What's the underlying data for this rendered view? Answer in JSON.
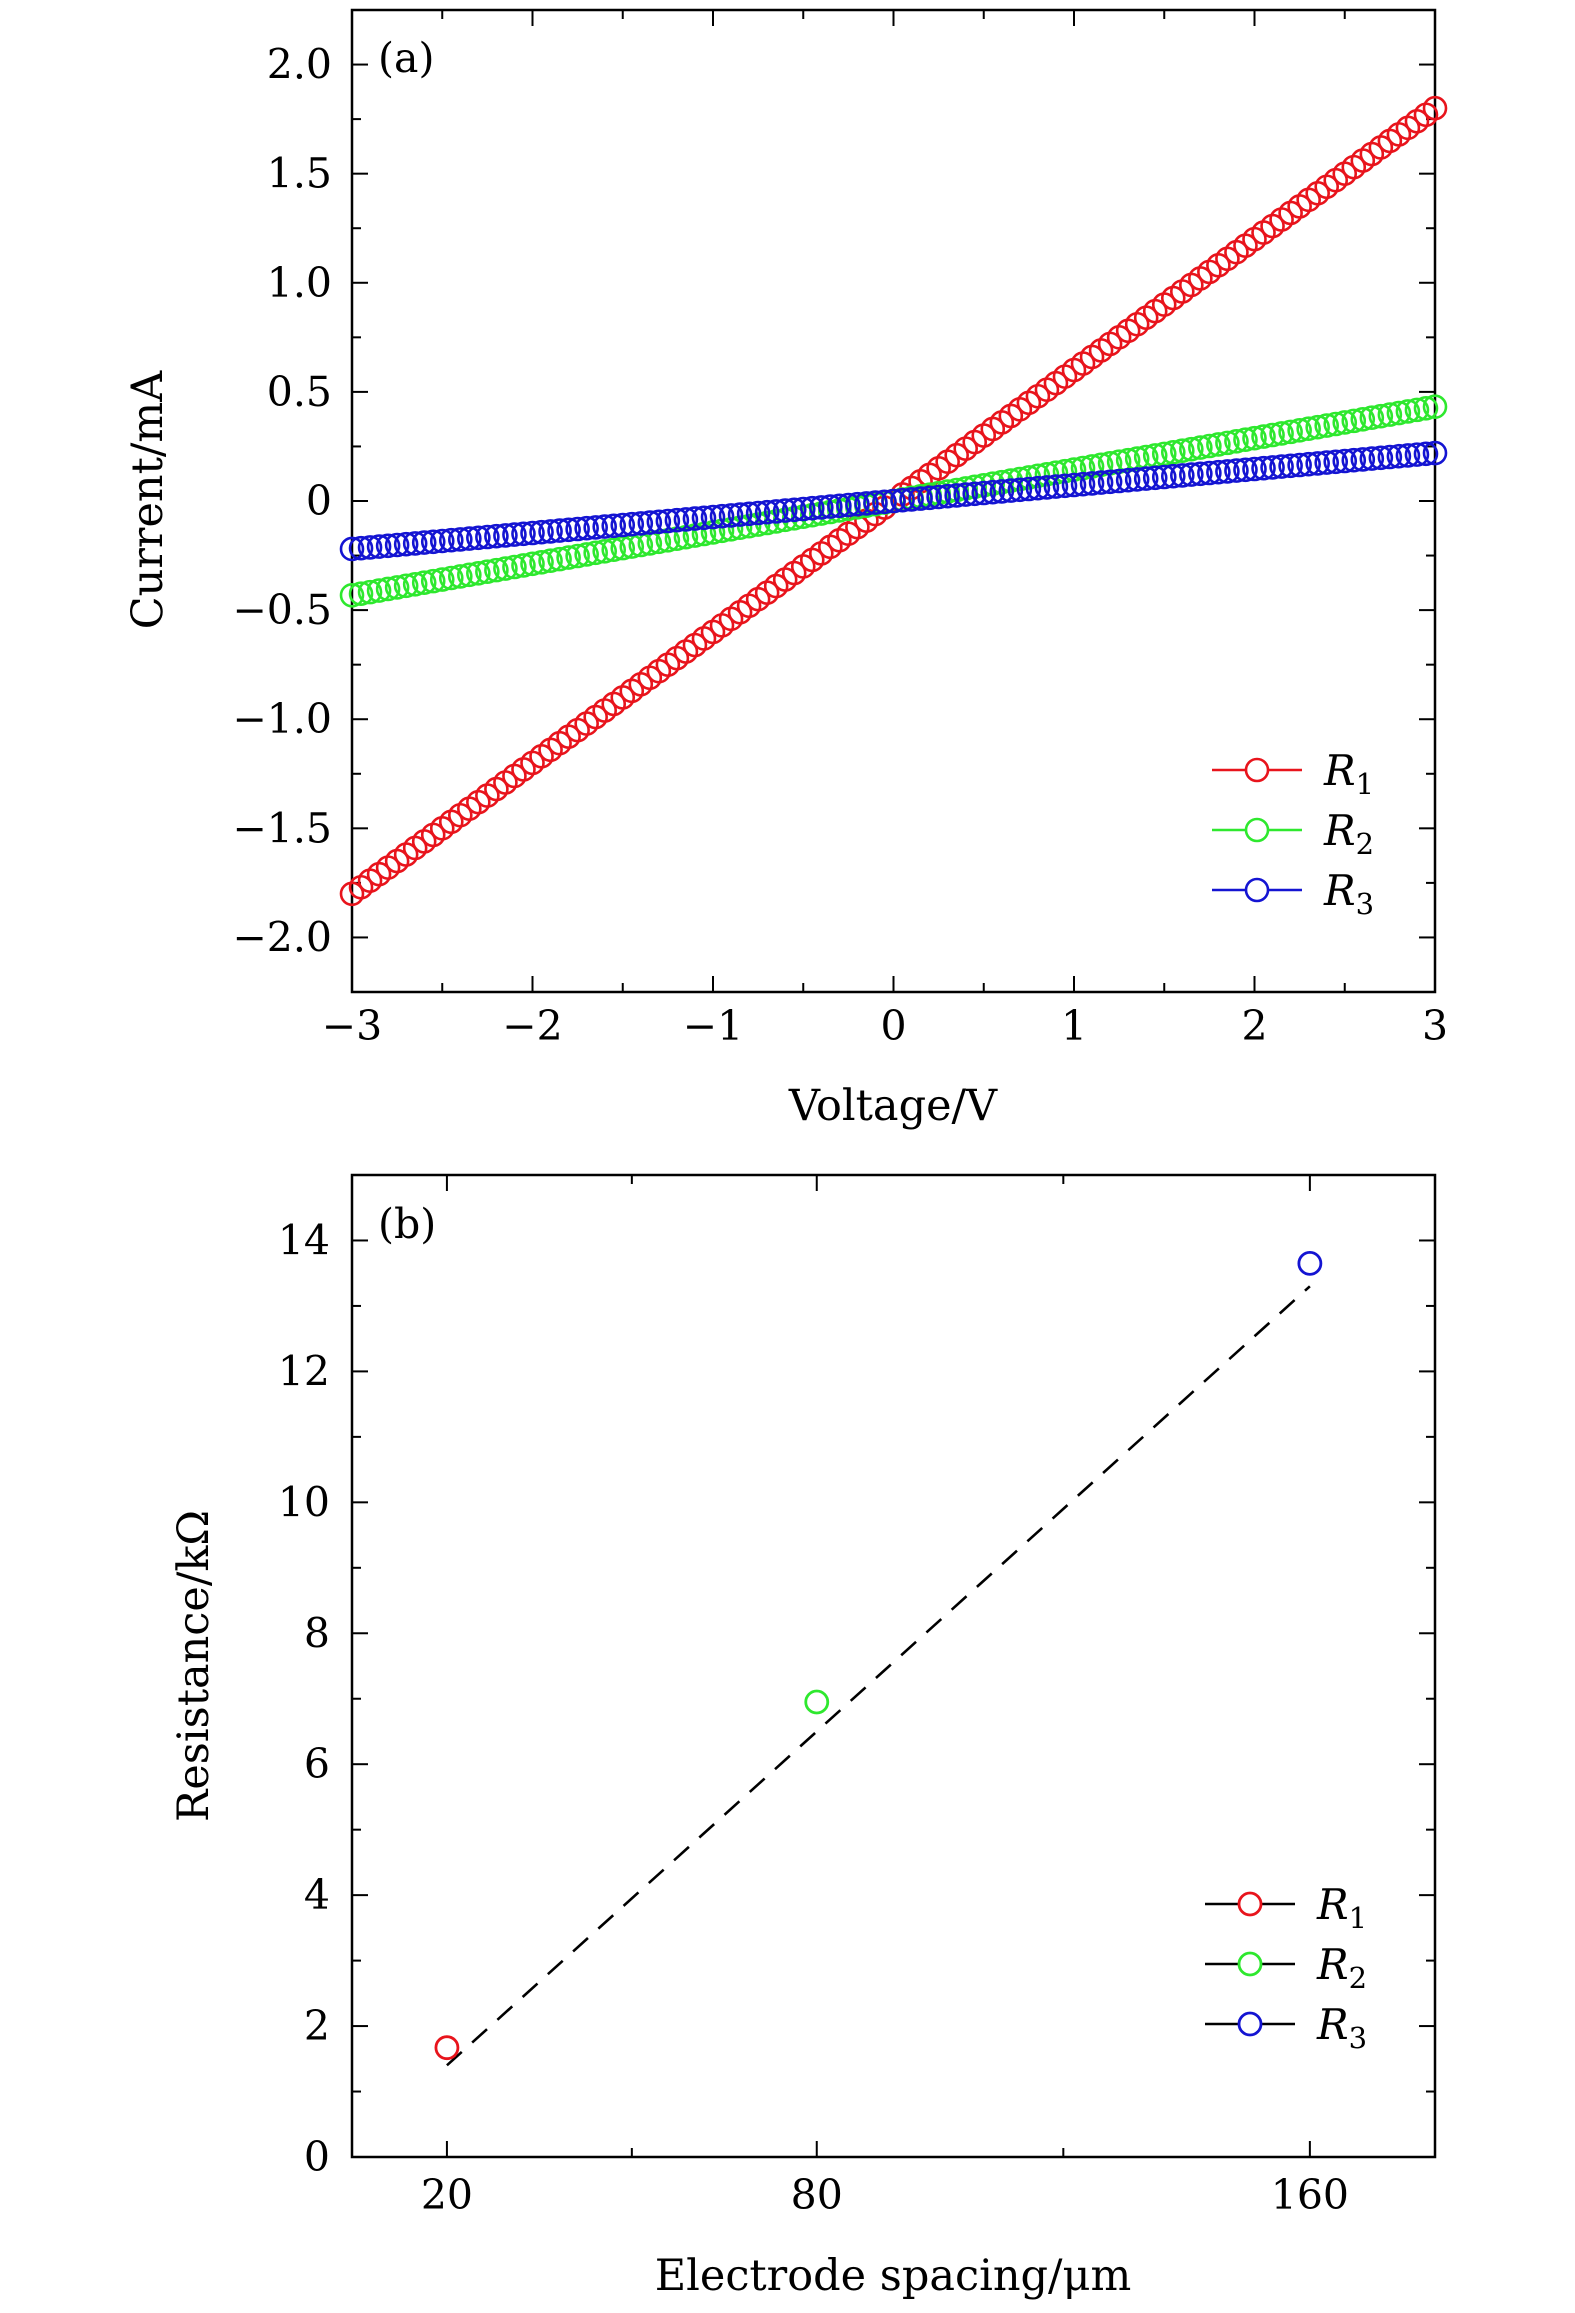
{
  "chart_data": [
    {
      "type": "scatter",
      "panel_label": "(a)",
      "xlabel": "Voltage/V",
      "ylabel": "Current/mA",
      "xlim": [
        -3,
        3
      ],
      "ylim": [
        -2.25,
        2.25
      ],
      "x_ticks": [
        -3,
        -2,
        -1,
        0,
        1,
        2,
        3
      ],
      "x_tick_labels": [
        "−3",
        "−2",
        "−1",
        "0",
        "1",
        "2",
        "3"
      ],
      "y_ticks": [
        -2.0,
        -1.5,
        -1.0,
        -0.5,
        0,
        0.5,
        1.0,
        1.5,
        2.0
      ],
      "y_tick_labels": [
        "−2.0",
        "−1.5",
        "−1.0",
        "−0.5",
        "0",
        "0.5",
        "1.0",
        "1.5",
        "2.0"
      ],
      "legend_position": "bottom-right",
      "grid": false,
      "x_range_sampled": {
        "start": -3,
        "end": 3,
        "step": 0.05
      },
      "series": [
        {
          "name": "R",
          "subscript": "1",
          "color": "#e8141c",
          "slope": 0.6,
          "y_at_-3": -1.8,
          "y_at_3": 1.8
        },
        {
          "name": "R",
          "subscript": "2",
          "color": "#2ee82e",
          "slope": 0.144,
          "y_at_-3": -0.432,
          "y_at_3": 0.432
        },
        {
          "name": "R",
          "subscript": "3",
          "color": "#1414d2",
          "slope": 0.0733,
          "y_at_-3": -0.22,
          "y_at_3": 0.22
        }
      ]
    },
    {
      "type": "scatter",
      "panel_label": "(b)",
      "xlabel": "Electrode spacing/μm",
      "ylabel": "Resistance/kΩ",
      "x_scale": "linear",
      "x_ticks": [
        20,
        80,
        160
      ],
      "x_tick_labels": [
        "20",
        "80",
        "160"
      ],
      "y_ticks": [
        0,
        2,
        4,
        6,
        8,
        10,
        12,
        14
      ],
      "y_tick_labels": [
        "0",
        "2",
        "4",
        "6",
        "8",
        "10",
        "12",
        "14"
      ],
      "ylim": [
        0,
        15
      ],
      "legend_position": "bottom-right",
      "grid": false,
      "fit_line": {
        "style": "dashed",
        "color": "#000000",
        "from": [
          20,
          1.4
        ],
        "to": [
          160,
          13.3
        ]
      },
      "series": [
        {
          "name": "R",
          "subscript": "1",
          "color": "#e8141c",
          "x": 20,
          "y": 1.67
        },
        {
          "name": "R",
          "subscript": "2",
          "color": "#2ee82e",
          "x": 80,
          "y": 6.95
        },
        {
          "name": "R",
          "subscript": "3",
          "color": "#1414d2",
          "x": 160,
          "y": 13.65
        }
      ]
    }
  ]
}
